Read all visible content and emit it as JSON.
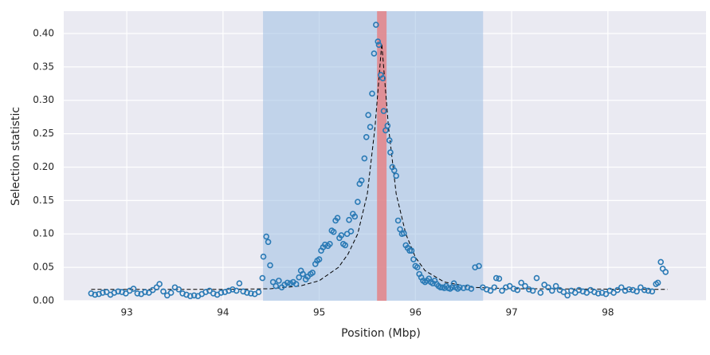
{
  "chart_data": {
    "type": "scatter",
    "xlabel": "Position (Mbp)",
    "ylabel": "Selection statistic",
    "xlim": [
      92.345,
      99.02
    ],
    "ylim": [
      0,
      0.4334
    ],
    "xticks": [
      93,
      94,
      95,
      96,
      97,
      98
    ],
    "yticks": [
      {
        "value": 0,
        "label": "0.00"
      },
      {
        "value": 0.05,
        "label": "0.05"
      },
      {
        "value": 0.1,
        "label": "0.10"
      },
      {
        "value": 0.15,
        "label": "0.15"
      },
      {
        "value": 0.2,
        "label": "0.20"
      },
      {
        "value": 0.25,
        "label": "0.25"
      },
      {
        "value": 0.3,
        "label": "0.30"
      },
      {
        "value": 0.35,
        "label": "0.35"
      },
      {
        "value": 0.4,
        "label": "0.40"
      }
    ],
    "grid": true,
    "spans": [
      {
        "range": [
          94.416,
          96.703
        ],
        "color": "#9ec0e3"
      },
      {
        "range": [
          95.601,
          95.7
        ],
        "color": "#e8787a"
      }
    ],
    "points": {
      "color": "#2a7ab5",
      "x": [
        92.63,
        92.67,
        92.71,
        92.75,
        92.79,
        92.83,
        92.87,
        92.91,
        92.95,
        92.99,
        93.03,
        93.07,
        93.11,
        93.15,
        93.19,
        93.23,
        93.27,
        93.31,
        93.34,
        93.38,
        93.42,
        93.46,
        93.5,
        93.54,
        93.58,
        93.62,
        93.66,
        93.7,
        93.74,
        93.78,
        93.82,
        93.86,
        93.9,
        93.94,
        93.98,
        94.02,
        94.06,
        94.1,
        94.14,
        94.17,
        94.21,
        94.25,
        94.29,
        94.33,
        94.37,
        94.41,
        94.42,
        94.45,
        94.47,
        94.49,
        94.52,
        94.55,
        94.58,
        94.61,
        94.64,
        94.67,
        94.7,
        94.73,
        94.76,
        94.79,
        94.81,
        94.83,
        94.86,
        94.88,
        94.91,
        94.93,
        94.96,
        94.98,
        95.0,
        95.02,
        95.04,
        95.06,
        95.09,
        95.11,
        95.13,
        95.15,
        95.17,
        95.19,
        95.21,
        95.23,
        95.25,
        95.27,
        95.29,
        95.31,
        95.33,
        95.35,
        95.37,
        95.4,
        95.42,
        95.44,
        95.47,
        95.49,
        95.51,
        95.53,
        95.55,
        95.57,
        95.59,
        95.61,
        95.62,
        95.64,
        95.66,
        95.67,
        95.69,
        95.71,
        95.73,
        95.74,
        95.76,
        95.78,
        95.8,
        95.82,
        95.84,
        95.86,
        95.88,
        95.9,
        95.92,
        95.94,
        95.96,
        95.98,
        96.0,
        96.02,
        96.04,
        96.06,
        96.08,
        96.1,
        96.12,
        96.14,
        96.16,
        96.18,
        96.2,
        96.22,
        96.24,
        96.26,
        96.28,
        96.3,
        96.32,
        96.34,
        96.36,
        96.38,
        96.4,
        96.42,
        96.44,
        96.46,
        96.5,
        96.54,
        96.58,
        96.62,
        96.66,
        96.7,
        96.74,
        96.78,
        96.82,
        96.84,
        96.87,
        96.9,
        96.94,
        96.98,
        97.02,
        97.06,
        97.1,
        97.14,
        97.18,
        97.22,
        97.26,
        97.3,
        97.34,
        97.38,
        97.42,
        97.46,
        97.5,
        97.54,
        97.58,
        97.62,
        97.66,
        97.7,
        97.74,
        97.78,
        97.82,
        97.86,
        97.9,
        97.94,
        97.98,
        98.02,
        98.06,
        98.1,
        98.14,
        98.18,
        98.22,
        98.26,
        98.3,
        98.34,
        98.38,
        98.42,
        98.46,
        98.5,
        98.52,
        98.55,
        98.57,
        98.6
      ],
      "values": [
        0.011,
        0.009,
        0.01,
        0.012,
        0.013,
        0.009,
        0.012,
        0.014,
        0.013,
        0.011,
        0.015,
        0.018,
        0.011,
        0.01,
        0.013,
        0.012,
        0.016,
        0.02,
        0.025,
        0.014,
        0.008,
        0.012,
        0.02,
        0.017,
        0.011,
        0.009,
        0.007,
        0.008,
        0.007,
        0.01,
        0.013,
        0.015,
        0.011,
        0.009,
        0.012,
        0.013,
        0.015,
        0.017,
        0.015,
        0.026,
        0.014,
        0.012,
        0.011,
        0.01,
        0.013,
        0.034,
        0.066,
        0.096,
        0.088,
        0.053,
        0.028,
        0.022,
        0.03,
        0.02,
        0.024,
        0.027,
        0.026,
        0.028,
        0.025,
        0.035,
        0.045,
        0.04,
        0.032,
        0.036,
        0.04,
        0.042,
        0.055,
        0.06,
        0.062,
        0.075,
        0.08,
        0.084,
        0.082,
        0.085,
        0.105,
        0.103,
        0.12,
        0.124,
        0.094,
        0.098,
        0.085,
        0.083,
        0.1,
        0.121,
        0.104,
        0.13,
        0.126,
        0.148,
        0.175,
        0.18,
        0.213,
        0.245,
        0.278,
        0.26,
        0.31,
        0.37,
        0.413,
        0.388,
        0.383,
        0.338,
        0.333,
        0.284,
        0.255,
        0.262,
        0.24,
        0.222,
        0.2,
        0.195,
        0.187,
        0.12,
        0.107,
        0.1,
        0.101,
        0.083,
        0.079,
        0.075,
        0.075,
        0.062,
        0.052,
        0.05,
        0.04,
        0.035,
        0.03,
        0.028,
        0.03,
        0.033,
        0.028,
        0.026,
        0.03,
        0.025,
        0.022,
        0.02,
        0.02,
        0.019,
        0.022,
        0.019,
        0.018,
        0.02,
        0.026,
        0.02,
        0.018,
        0.02,
        0.019,
        0.02,
        0.018,
        0.05,
        0.052,
        0.02,
        0.017,
        0.015,
        0.02,
        0.034,
        0.033,
        0.015,
        0.02,
        0.022,
        0.018,
        0.016,
        0.027,
        0.022,
        0.017,
        0.015,
        0.034,
        0.012,
        0.024,
        0.02,
        0.015,
        0.022,
        0.016,
        0.013,
        0.008,
        0.015,
        0.012,
        0.016,
        0.014,
        0.012,
        0.016,
        0.013,
        0.011,
        0.012,
        0.01,
        0.015,
        0.012,
        0.016,
        0.02,
        0.015,
        0.017,
        0.016,
        0.014,
        0.02,
        0.016,
        0.015,
        0.014,
        0.025,
        0.027,
        0.058,
        0.048,
        0.043
      ]
    },
    "fit": {
      "color": "#000000",
      "x": [
        92.63,
        94.0,
        94.5,
        94.8,
        95.0,
        95.2,
        95.3,
        95.4,
        95.5,
        95.58,
        95.65,
        95.72,
        95.8,
        95.9,
        96.0,
        96.1,
        96.3,
        96.6,
        97.0,
        98.62
      ],
      "values": [
        0.017,
        0.017,
        0.018,
        0.022,
        0.03,
        0.05,
        0.07,
        0.1,
        0.16,
        0.26,
        0.385,
        0.26,
        0.16,
        0.1,
        0.065,
        0.045,
        0.028,
        0.02,
        0.018,
        0.017
      ]
    }
  }
}
